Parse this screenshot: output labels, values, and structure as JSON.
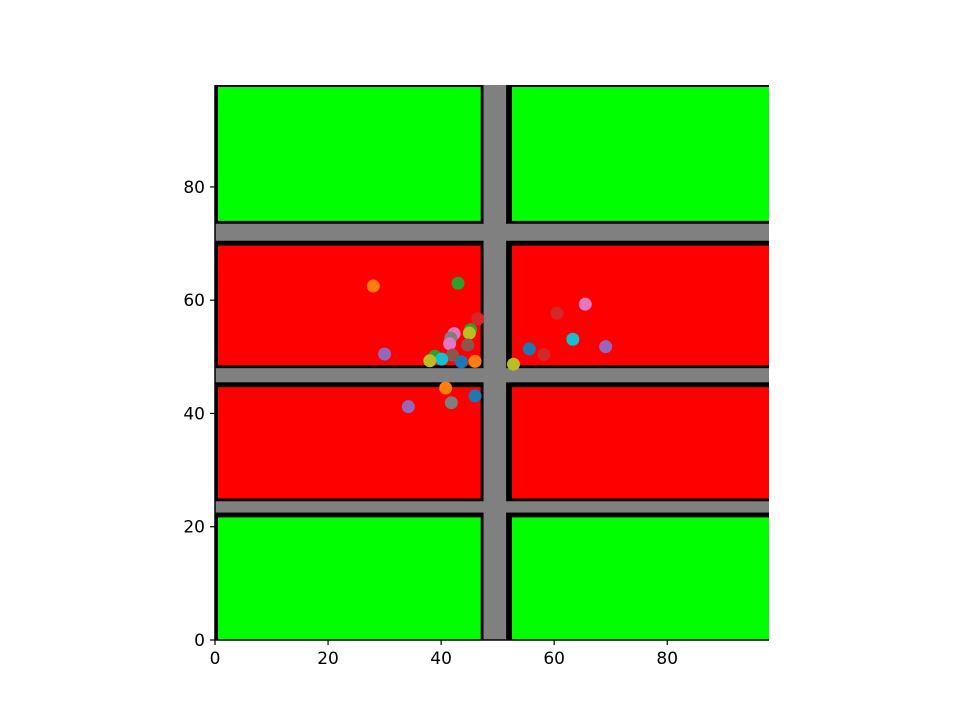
{
  "chart_data": {
    "type": "scatter",
    "title": "",
    "xlabel": "",
    "ylabel": "",
    "xlim": [
      0,
      98
    ],
    "ylim": [
      0,
      98
    ],
    "grid": false,
    "xticks": [
      0,
      20,
      40,
      60,
      80
    ],
    "yticks": [
      0,
      20,
      40,
      60,
      80
    ],
    "xtick_labels": [
      "0",
      "20",
      "40",
      "60",
      "80"
    ],
    "ytick_labels": [
      "0",
      "20",
      "40",
      "60",
      "80"
    ],
    "background_regions": [
      {
        "name": "block-top-left",
        "x": [
          0,
          47
        ],
        "y": [
          74,
          98
        ],
        "color": "#00ff00"
      },
      {
        "name": "block-top-right",
        "x": [
          52,
          98
        ],
        "y": [
          74,
          98
        ],
        "color": "#00ff00"
      },
      {
        "name": "block-upper-mid-left",
        "x": [
          0,
          47
        ],
        "y": [
          48.5,
          70
        ],
        "color": "#ff0000"
      },
      {
        "name": "block-upper-mid-right",
        "x": [
          52,
          98
        ],
        "y": [
          48.5,
          70
        ],
        "color": "#ff0000"
      },
      {
        "name": "block-lower-mid-left",
        "x": [
          0,
          47
        ],
        "y": [
          25,
          45
        ],
        "color": "#ff0000"
      },
      {
        "name": "block-lower-mid-right",
        "x": [
          52,
          98
        ],
        "y": [
          25,
          45
        ],
        "color": "#ff0000"
      },
      {
        "name": "block-bottom-left",
        "x": [
          0,
          47
        ],
        "y": [
          0,
          22
        ],
        "color": "#00ff00"
      },
      {
        "name": "block-bottom-right",
        "x": [
          52,
          98
        ],
        "y": [
          0,
          22
        ],
        "color": "#00ff00"
      }
    ],
    "roads": [
      {
        "name": "road-vertical",
        "x": [
          47.5,
          51.5
        ],
        "y": [
          0,
          98
        ],
        "color": "#808080"
      },
      {
        "name": "road-horizontal-top",
        "x": [
          0,
          98
        ],
        "y": [
          70.5,
          73.5
        ],
        "color": "#808080"
      },
      {
        "name": "road-horizontal-middle",
        "x": [
          0,
          98
        ],
        "y": [
          45.5,
          48
        ],
        "color": "#808080"
      },
      {
        "name": "road-horizontal-bottom",
        "x": [
          0,
          98
        ],
        "y": [
          22.5,
          24.5
        ],
        "color": "#808080"
      }
    ],
    "points": [
      {
        "x": 28,
        "y": 62.5,
        "color": "#ff7f0e"
      },
      {
        "x": 43,
        "y": 63,
        "color": "#2ca02c"
      },
      {
        "x": 65.5,
        "y": 59.3,
        "color": "#e377c2"
      },
      {
        "x": 60.5,
        "y": 57.7,
        "color": "#d62728"
      },
      {
        "x": 46.5,
        "y": 56.7,
        "color": "#d62728"
      },
      {
        "x": 45.2,
        "y": 54.8,
        "color": "#2ca02c"
      },
      {
        "x": 45,
        "y": 54.2,
        "color": "#bcbd22"
      },
      {
        "x": 42.3,
        "y": 54.1,
        "color": "#e377c2"
      },
      {
        "x": 41.7,
        "y": 53.3,
        "color": "#7f7f7f"
      },
      {
        "x": 63.3,
        "y": 53.1,
        "color": "#17becf"
      },
      {
        "x": 41.5,
        "y": 52.3,
        "color": "#e377c2"
      },
      {
        "x": 44.7,
        "y": 52.1,
        "color": "#8c564b"
      },
      {
        "x": 69.1,
        "y": 51.8,
        "color": "#9467bd"
      },
      {
        "x": 55.6,
        "y": 51.4,
        "color": "#1f77b4"
      },
      {
        "x": 30,
        "y": 50.5,
        "color": "#9467bd"
      },
      {
        "x": 58.2,
        "y": 50.4,
        "color": "#d62728"
      },
      {
        "x": 42,
        "y": 50.3,
        "color": "#8c564b"
      },
      {
        "x": 38.9,
        "y": 50.1,
        "color": "#2ca02c"
      },
      {
        "x": 40.1,
        "y": 49.6,
        "color": "#17becf"
      },
      {
        "x": 38,
        "y": 49.3,
        "color": "#bcbd22"
      },
      {
        "x": 43.6,
        "y": 49.1,
        "color": "#1f77b4"
      },
      {
        "x": 46,
        "y": 49.2,
        "color": "#ff7f0e"
      },
      {
        "x": 52.8,
        "y": 48.7,
        "color": "#bcbd22"
      },
      {
        "x": 40.8,
        "y": 44.5,
        "color": "#ff7f0e"
      },
      {
        "x": 46,
        "y": 43.1,
        "color": "#1f77b4"
      },
      {
        "x": 41.8,
        "y": 41.9,
        "color": "#7f7f7f"
      },
      {
        "x": 34.2,
        "y": 41.2,
        "color": "#9467bd"
      }
    ]
  }
}
